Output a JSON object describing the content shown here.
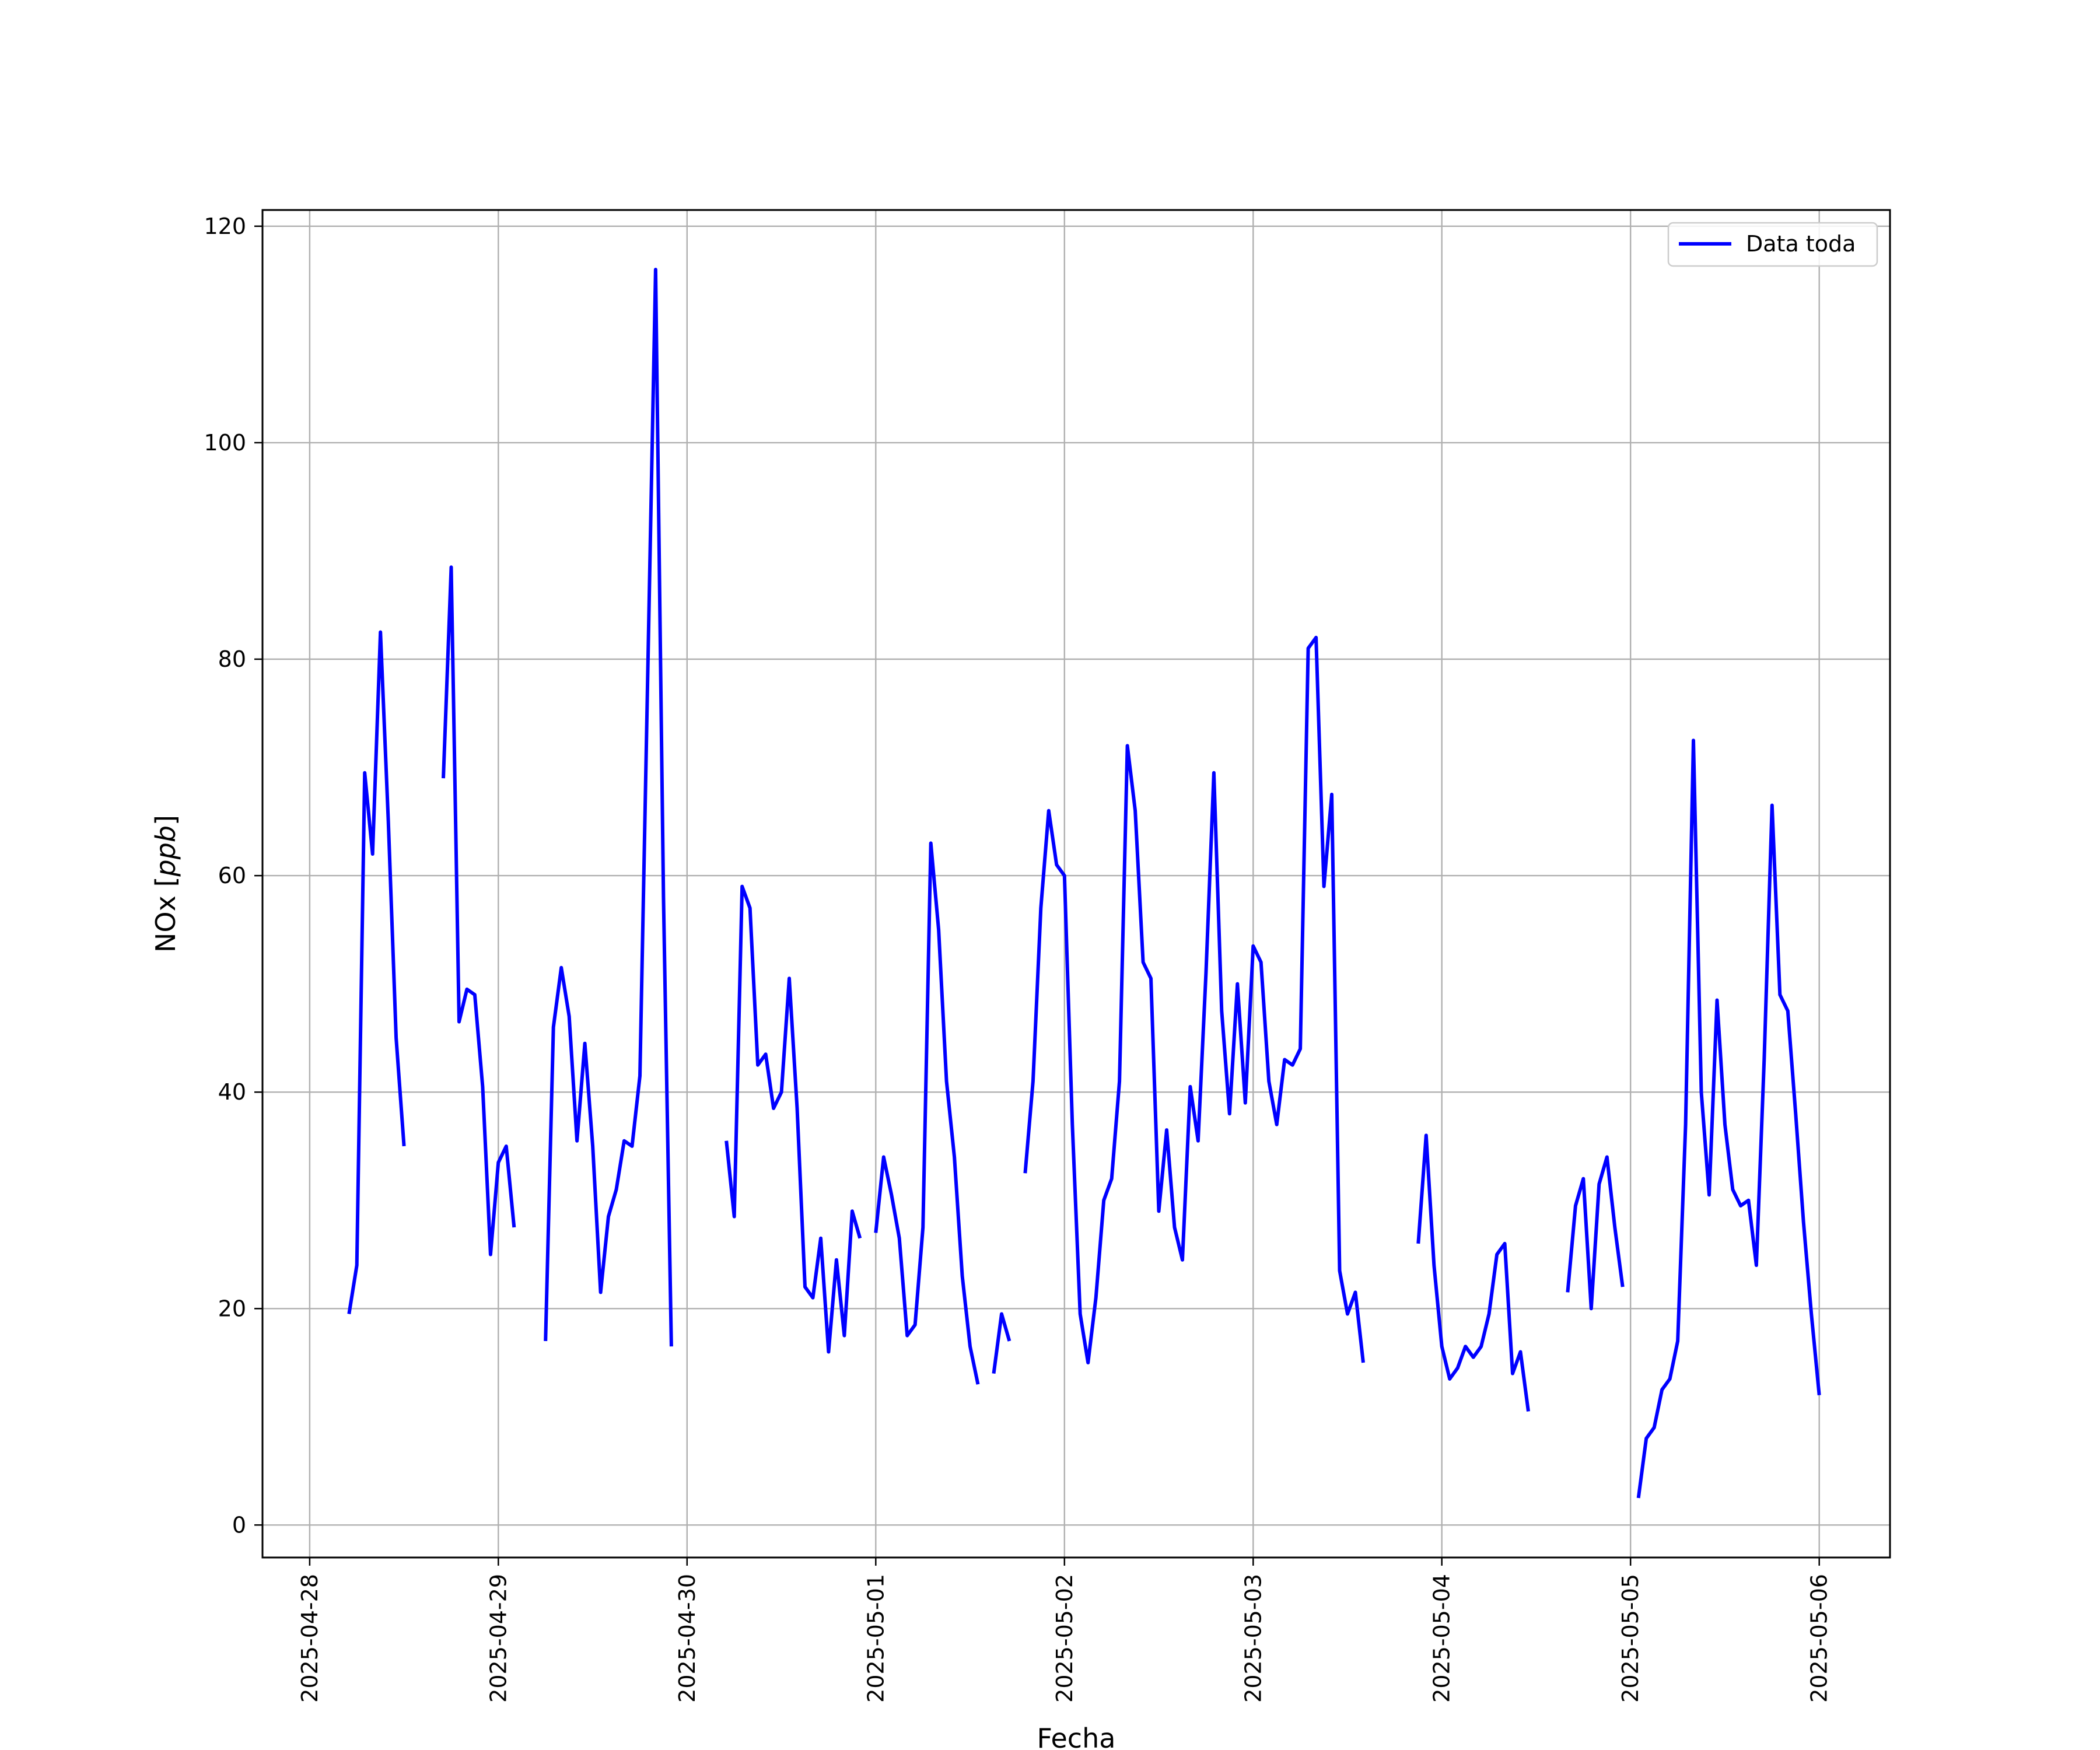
{
  "chart_data": {
    "type": "line",
    "xlabel": "Fecha",
    "ylabel": "NOx [ppb]",
    "ylabel_base": "NOx ",
    "ylabel_unit": "ppb",
    "xlim": [
      "2025-04-27 18:00",
      "2025-05-06 09:00"
    ],
    "ylim": [
      -3,
      121.5
    ],
    "yticks": [
      0,
      20,
      40,
      60,
      80,
      100,
      120
    ],
    "xticks": [
      "2025-04-28",
      "2025-04-29",
      "2025-04-30",
      "2025-05-01",
      "2025-05-02",
      "2025-05-03",
      "2025-05-04",
      "2025-05-05",
      "2025-05-06"
    ],
    "grid": true,
    "legend": "top-right",
    "series": [
      {
        "name": "Data toda",
        "color": "#0000ff",
        "segments": [
          [
            [
              "2025-04-28 05:00",
              19.5
            ],
            [
              "2025-04-28 06:00",
              24
            ],
            [
              "2025-04-28 07:00",
              69.5
            ],
            [
              "2025-04-28 08:00",
              62
            ],
            [
              "2025-04-28 09:00",
              82.5
            ],
            [
              "2025-04-28 10:00",
              65
            ],
            [
              "2025-04-28 11:00",
              45
            ],
            [
              "2025-04-28 12:00",
              35
            ]
          ],
          [
            [
              "2025-04-28 17:00",
              69
            ],
            [
              "2025-04-28 18:00",
              88.5
            ],
            [
              "2025-04-28 19:00",
              46.5
            ],
            [
              "2025-04-28 20:00",
              49.5
            ],
            [
              "2025-04-28 21:00",
              49
            ],
            [
              "2025-04-28 22:00",
              40.5
            ],
            [
              "2025-04-28 23:00",
              25
            ],
            [
              "2025-04-29 00:00",
              33.5
            ],
            [
              "2025-04-29 01:00",
              35
            ],
            [
              "2025-04-29 02:00",
              27.5
            ]
          ],
          [
            [
              "2025-04-29 06:00",
              17
            ],
            [
              "2025-04-29 07:00",
              46
            ],
            [
              "2025-04-29 08:00",
              51.5
            ],
            [
              "2025-04-29 09:00",
              47
            ],
            [
              "2025-04-29 10:00",
              35.5
            ],
            [
              "2025-04-29 11:00",
              44.5
            ],
            [
              "2025-04-29 12:00",
              35
            ],
            [
              "2025-04-29 13:00",
              21.5
            ],
            [
              "2025-04-29 14:00",
              28.5
            ],
            [
              "2025-04-29 15:00",
              31
            ],
            [
              "2025-04-29 16:00",
              35.5
            ],
            [
              "2025-04-29 17:00",
              35
            ],
            [
              "2025-04-29 18:00",
              41.5
            ],
            [
              "2025-04-29 20:00",
              116
            ],
            [
              "2025-04-29 21:00",
              58
            ],
            [
              "2025-04-29 22:00",
              16.5
            ]
          ],
          [
            [
              "2025-04-30 05:00",
              35.5
            ],
            [
              "2025-04-30 06:00",
              28.5
            ],
            [
              "2025-04-30 07:00",
              59
            ],
            [
              "2025-04-30 08:00",
              57
            ],
            [
              "2025-04-30 09:00",
              42.5
            ],
            [
              "2025-04-30 10:00",
              43.5
            ],
            [
              "2025-04-30 11:00",
              38.5
            ],
            [
              "2025-04-30 12:00",
              40
            ],
            [
              "2025-04-30 13:00",
              50.5
            ],
            [
              "2025-04-30 14:00",
              38.5
            ],
            [
              "2025-04-30 15:00",
              22
            ],
            [
              "2025-04-30 16:00",
              21
            ],
            [
              "2025-04-30 17:00",
              26.5
            ],
            [
              "2025-04-30 18:00",
              16
            ],
            [
              "2025-04-30 19:00",
              24.5
            ],
            [
              "2025-04-30 20:00",
              17.5
            ],
            [
              "2025-04-30 21:00",
              29
            ],
            [
              "2025-04-30 22:00",
              26.5
            ]
          ],
          [
            [
              "2025-05-01 00:00",
              27
            ],
            [
              "2025-05-01 01:00",
              34
            ],
            [
              "2025-05-01 02:00",
              30.5
            ],
            [
              "2025-05-01 03:00",
              26.5
            ],
            [
              "2025-05-01 04:00",
              17.5
            ],
            [
              "2025-05-01 05:00",
              18.5
            ],
            [
              "2025-05-01 06:00",
              27.5
            ],
            [
              "2025-05-01 07:00",
              63
            ],
            [
              "2025-05-01 08:00",
              55
            ],
            [
              "2025-05-01 09:00",
              41
            ],
            [
              "2025-05-01 10:00",
              34
            ],
            [
              "2025-05-01 11:00",
              23
            ],
            [
              "2025-05-01 12:00",
              16.5
            ],
            [
              "2025-05-01 13:00",
              13
            ]
          ],
          [
            [
              "2025-05-01 15:00",
              14
            ],
            [
              "2025-05-01 16:00",
              19.5
            ],
            [
              "2025-05-01 17:00",
              17
            ]
          ],
          [
            [
              "2025-05-01 19:00",
              32.5
            ],
            [
              "2025-05-01 20:00",
              41
            ],
            [
              "2025-05-01 21:00",
              57
            ],
            [
              "2025-05-01 22:00",
              66
            ],
            [
              "2025-05-01 23:00",
              61
            ],
            [
              "2025-05-02 00:00",
              60
            ],
            [
              "2025-05-02 01:00",
              37
            ],
            [
              "2025-05-02 02:00",
              19.5
            ],
            [
              "2025-05-02 03:00",
              15
            ],
            [
              "2025-05-02 04:00",
              21
            ],
            [
              "2025-05-02 05:00",
              30
            ],
            [
              "2025-05-02 06:00",
              32
            ],
            [
              "2025-05-02 07:00",
              41
            ],
            [
              "2025-05-02 08:00",
              72
            ],
            [
              "2025-05-02 09:00",
              66
            ],
            [
              "2025-05-02 10:00",
              52
            ],
            [
              "2025-05-02 11:00",
              50.5
            ],
            [
              "2025-05-02 12:00",
              29
            ],
            [
              "2025-05-02 13:00",
              36.5
            ],
            [
              "2025-05-02 14:00",
              27.5
            ],
            [
              "2025-05-02 15:00",
              24.5
            ],
            [
              "2025-05-02 16:00",
              40.5
            ],
            [
              "2025-05-02 17:00",
              35.5
            ],
            [
              "2025-05-02 18:00",
              51
            ],
            [
              "2025-05-02 19:00",
              69.5
            ],
            [
              "2025-05-02 20:00",
              47.5
            ],
            [
              "2025-05-02 21:00",
              38
            ],
            [
              "2025-05-02 22:00",
              50
            ],
            [
              "2025-05-02 23:00",
              39
            ],
            [
              "2025-05-03 00:00",
              53.5
            ],
            [
              "2025-05-03 01:00",
              52
            ],
            [
              "2025-05-03 02:00",
              41
            ],
            [
              "2025-05-03 03:00",
              37
            ],
            [
              "2025-05-03 04:00",
              43
            ],
            [
              "2025-05-03 05:00",
              42.5
            ],
            [
              "2025-05-03 06:00",
              44
            ],
            [
              "2025-05-03 07:00",
              81
            ],
            [
              "2025-05-03 08:00",
              82
            ],
            [
              "2025-05-03 09:00",
              59
            ],
            [
              "2025-05-03 10:00",
              67.5
            ],
            [
              "2025-05-03 11:00",
              23.5
            ],
            [
              "2025-05-03 12:00",
              19.5
            ],
            [
              "2025-05-03 13:00",
              21.5
            ],
            [
              "2025-05-03 14:00",
              15
            ]
          ],
          [
            [
              "2025-05-03 21:00",
              26
            ],
            [
              "2025-05-03 22:00",
              36
            ],
            [
              "2025-05-03 23:00",
              24
            ],
            [
              "2025-05-04 00:00",
              16.5
            ],
            [
              "2025-05-04 01:00",
              13.5
            ],
            [
              "2025-05-04 02:00",
              14.5
            ],
            [
              "2025-05-04 03:00",
              16.5
            ],
            [
              "2025-05-04 04:00",
              15.5
            ],
            [
              "2025-05-04 05:00",
              16.5
            ],
            [
              "2025-05-04 06:00",
              19.5
            ],
            [
              "2025-05-04 07:00",
              25
            ],
            [
              "2025-05-04 08:00",
              26
            ],
            [
              "2025-05-04 09:00",
              14
            ],
            [
              "2025-05-04 10:00",
              16
            ],
            [
              "2025-05-04 11:00",
              10.5
            ]
          ],
          [
            [
              "2025-05-04 16:00",
              21.5
            ],
            [
              "2025-05-04 17:00",
              29.5
            ],
            [
              "2025-05-04 18:00",
              32
            ],
            [
              "2025-05-04 19:00",
              20
            ],
            [
              "2025-05-04 20:00",
              31.5
            ],
            [
              "2025-05-04 21:00",
              34
            ],
            [
              "2025-05-04 22:00",
              27.5
            ],
            [
              "2025-05-04 23:00",
              22
            ]
          ],
          [
            [
              "2025-05-05 01:00",
              2.5
            ],
            [
              "2025-05-05 02:00",
              8
            ],
            [
              "2025-05-05 03:00",
              9
            ],
            [
              "2025-05-05 04:00",
              12.5
            ],
            [
              "2025-05-05 05:00",
              13.5
            ],
            [
              "2025-05-05 06:00",
              17
            ],
            [
              "2025-05-05 07:00",
              37
            ],
            [
              "2025-05-05 08:00",
              72.5
            ],
            [
              "2025-05-05 09:00",
              40
            ],
            [
              "2025-05-05 10:00",
              30.5
            ],
            [
              "2025-05-05 11:00",
              48.5
            ],
            [
              "2025-05-05 12:00",
              37
            ],
            [
              "2025-05-05 13:00",
              31
            ],
            [
              "2025-05-05 14:00",
              29.5
            ],
            [
              "2025-05-05 15:00",
              30
            ],
            [
              "2025-05-05 16:00",
              24
            ],
            [
              "2025-05-05 17:00",
              43
            ],
            [
              "2025-05-05 18:00",
              66.5
            ],
            [
              "2025-05-05 19:00",
              49
            ],
            [
              "2025-05-05 20:00",
              47.5
            ],
            [
              "2025-05-05 21:00",
              38
            ],
            [
              "2025-05-05 22:00",
              28
            ],
            [
              "2025-05-05 23:00",
              19.5
            ],
            [
              "2025-05-06 00:00",
              12
            ]
          ]
        ]
      }
    ]
  }
}
